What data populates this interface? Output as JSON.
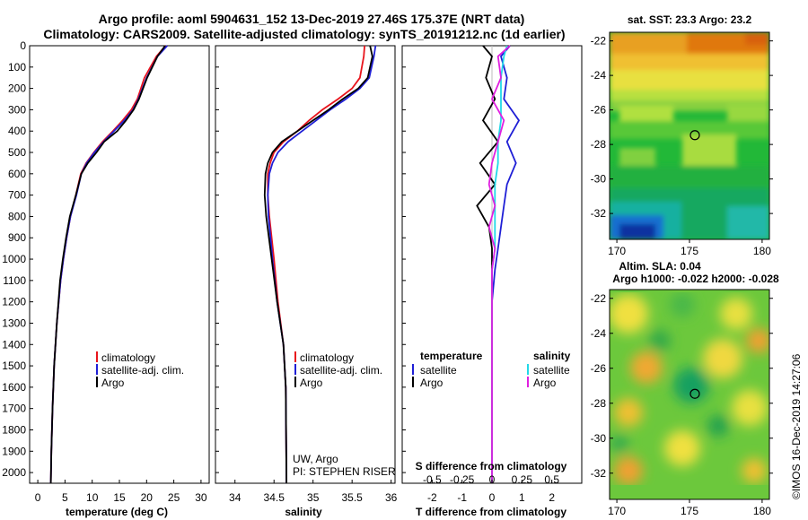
{
  "header": {
    "title_line1": "Argo profile: aoml 5904631_152 13-Dec-2019 27.46S 175.37E (NRT data)",
    "title_line2": "Climatology: CARS2009. Satellite-adjusted climatology: synTS_20191212.nc (1d earlier)"
  },
  "colors": {
    "climatology": "#e8141c",
    "satellite": "#1f1fd6",
    "argo": "#000000",
    "sat_salinity": "#22d8e8",
    "argo_salinity": "#e020e0"
  },
  "depth_axis": {
    "ylim": [
      0,
      2050
    ],
    "ticks": [
      "0",
      "100",
      "200",
      "300",
      "400",
      "500",
      "600",
      "700",
      "800",
      "900",
      "1000",
      "1100",
      "1200",
      "1300",
      "1400",
      "1500",
      "1600",
      "1700",
      "1800",
      "1900",
      "2000"
    ]
  },
  "chart_data": [
    {
      "type": "line",
      "xlabel": "temperature (deg C)",
      "xlim": [
        -1.5,
        31.5
      ],
      "xticks": [
        "0",
        "5",
        "10",
        "15",
        "20",
        "25",
        "30"
      ],
      "legend": [
        "climatology",
        "satellite-adj. clim.",
        "Argo"
      ],
      "series": [
        {
          "name": "climatology",
          "x": [
            23.5,
            21.8,
            19.6,
            18.3,
            17.2,
            15.6,
            13.8,
            11.9,
            10.3,
            8.9,
            7.9,
            7.0,
            6.0,
            5.3,
            4.7,
            4.2,
            3.5,
            3.0,
            2.7,
            2.5,
            2.4
          ],
          "y": [
            0,
            50,
            150,
            250,
            300,
            350,
            400,
            450,
            500,
            550,
            600,
            700,
            800,
            900,
            1000,
            1100,
            1300,
            1500,
            1700,
            1900,
            2050
          ]
        },
        {
          "name": "satellite-adj. clim.",
          "x": [
            23.8,
            22.0,
            20.0,
            18.5,
            17.5,
            15.9,
            14.0,
            12.1,
            10.4,
            9.0,
            8.0,
            7.1,
            6.0,
            5.3,
            4.7,
            4.2,
            3.5,
            3.0,
            2.7,
            2.5,
            2.4
          ],
          "y": [
            0,
            50,
            150,
            250,
            300,
            350,
            400,
            450,
            500,
            550,
            600,
            700,
            800,
            900,
            1000,
            1100,
            1300,
            1500,
            1700,
            1900,
            2050
          ]
        },
        {
          "name": "Argo",
          "x": [
            23.4,
            22.0,
            20.1,
            18.6,
            17.6,
            16.2,
            14.6,
            12.2,
            10.8,
            9.2,
            8.0,
            7.0,
            5.9,
            5.2,
            4.6,
            4.1,
            3.5,
            3.0,
            2.7,
            2.5,
            2.4
          ],
          "y": [
            0,
            50,
            150,
            250,
            300,
            350,
            400,
            450,
            500,
            550,
            600,
            700,
            800,
            900,
            1000,
            1100,
            1300,
            1500,
            1700,
            1900,
            2050
          ]
        }
      ]
    },
    {
      "type": "line",
      "xlabel": "salinity",
      "xlim": [
        33.75,
        36.05
      ],
      "xticks": [
        "34",
        "34.5",
        "35",
        "35.5",
        "36"
      ],
      "legend": [
        "climatology",
        "satellite-adj. clim.",
        "Argo"
      ],
      "series": [
        {
          "name": "climatology",
          "x": [
            35.66,
            35.65,
            35.6,
            35.5,
            35.32,
            35.12,
            34.95,
            34.8,
            34.62,
            34.5,
            34.45,
            34.42,
            34.42,
            34.44,
            34.5,
            34.55,
            34.62,
            34.65,
            34.66
          ],
          "y": [
            0,
            50,
            150,
            200,
            250,
            300,
            350,
            400,
            450,
            500,
            550,
            600,
            700,
            800,
            1000,
            1200,
            1400,
            1600,
            2050
          ]
        },
        {
          "name": "satellite-adj. clim.",
          "x": [
            35.8,
            35.78,
            35.72,
            35.6,
            35.42,
            35.22,
            35.04,
            34.86,
            34.68,
            34.55,
            34.48,
            34.44,
            34.42,
            34.43,
            34.48,
            34.54,
            34.62,
            34.65,
            34.66
          ],
          "y": [
            0,
            50,
            150,
            200,
            250,
            300,
            350,
            400,
            450,
            500,
            550,
            600,
            700,
            800,
            1000,
            1200,
            1400,
            1600,
            2050
          ]
        },
        {
          "name": "Argo",
          "x": [
            35.73,
            35.76,
            35.7,
            35.58,
            35.38,
            35.2,
            35.0,
            34.8,
            34.6,
            34.48,
            34.42,
            34.39,
            34.38,
            34.4,
            34.47,
            34.54,
            34.62,
            34.65,
            34.66
          ],
          "y": [
            0,
            50,
            150,
            200,
            250,
            300,
            350,
            400,
            450,
            500,
            550,
            600,
            700,
            800,
            1000,
            1200,
            1400,
            1600,
            2050
          ]
        }
      ]
    },
    {
      "type": "line",
      "xlabel": "T difference from climatology",
      "xlabel_top": "S difference from climatology",
      "xlim": [
        -3,
        3
      ],
      "xticks": [
        "-2",
        "-1",
        "0",
        "1",
        "2"
      ],
      "xticks_top": [
        "-0.5",
        "-0.25",
        "0",
        "0.25",
        "0.5"
      ],
      "legend_left_title": "temperature",
      "legend_right_title": "salinity",
      "legend": [
        "satellite",
        "Argo"
      ],
      "series": [
        {
          "name": "temperature satellite",
          "x": [
            0.6,
            0.3,
            0.5,
            0.4,
            0.9,
            0.5,
            0.8,
            0.5,
            0.4,
            0.3,
            0.2,
            0.1,
            0.0,
            0.0,
            0.0,
            0.0
          ],
          "y": [
            0,
            50,
            150,
            250,
            350,
            450,
            550,
            650,
            750,
            850,
            950,
            1050,
            1200,
            1500,
            1800,
            2050
          ]
        },
        {
          "name": "temperature Argo",
          "x": [
            -0.3,
            0.0,
            -0.2,
            0.1,
            -0.3,
            0.2,
            -0.4,
            0.1,
            -0.5,
            -0.1,
            0.0,
            0.0,
            0.0,
            0.0,
            0.0,
            0.0
          ],
          "y": [
            0,
            50,
            150,
            250,
            350,
            450,
            550,
            650,
            750,
            850,
            950,
            1050,
            1200,
            1500,
            1800,
            2050
          ]
        },
        {
          "name": "salinity satellite",
          "x": [
            0.5,
            0.4,
            0.3,
            0.3,
            0.3,
            0.2,
            0.2,
            0.1,
            0.1,
            0.1,
            0.1,
            0.0,
            0.0,
            0.0,
            0.0,
            0.0
          ],
          "y": [
            0,
            50,
            150,
            250,
            350,
            450,
            550,
            650,
            750,
            850,
            950,
            1050,
            1200,
            1500,
            1800,
            2050
          ]
        },
        {
          "name": "salinity Argo",
          "x": [
            0.6,
            0.2,
            0.3,
            0.0,
            0.4,
            0.2,
            0.0,
            -0.1,
            0.1,
            -0.1,
            0.1,
            0.0,
            0.0,
            0.0,
            0.0,
            0.0
          ],
          "y": [
            0,
            50,
            150,
            250,
            350,
            450,
            550,
            650,
            750,
            850,
            950,
            1050,
            1200,
            1500,
            1800,
            2050
          ]
        }
      ]
    },
    {
      "type": "heatmap",
      "title": "sat. SST: 23.3 Argo: 23.2",
      "xlim": [
        169.5,
        180.5
      ],
      "ylim": [
        -33.5,
        -21.5
      ],
      "xticks": [
        "170",
        "175",
        "180"
      ],
      "yticks": [
        "-22",
        "-24",
        "-26",
        "-28",
        "-30",
        "-32"
      ],
      "marker": {
        "lon": 175.37,
        "lat": -27.46
      }
    },
    {
      "type": "heatmap",
      "title_line1": "Altim. SLA: 0.04",
      "title_line2": "Argo h1000: -0.022 h2000: -0.028",
      "xlim": [
        169.5,
        180.5
      ],
      "ylim": [
        -33.5,
        -21.5
      ],
      "xticks": [
        "170",
        "175",
        "180"
      ],
      "yticks": [
        "-22",
        "-24",
        "-26",
        "-28",
        "-30",
        "-32"
      ],
      "marker": {
        "lon": 175.37,
        "lat": -27.46
      }
    }
  ],
  "annotations": {
    "credit_line1": "UW, Argo",
    "credit_line2": "PI: STEPHEN RISER",
    "imos_stamp": "©IMOS 16-Dec-2019 14:27:06"
  }
}
